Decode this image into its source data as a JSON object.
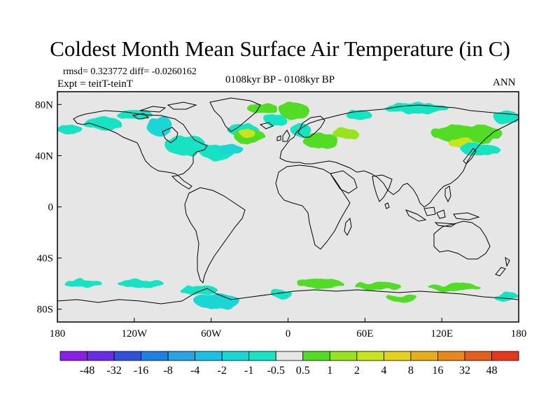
{
  "title": "Coldest Month Mean Surface Air Temperature (in C)",
  "stats": "rmsd= 0.323772 diff= -0.0260162",
  "expt": "Expt = teitT-teinT",
  "period": "0108kyr BP - 0108kyr BP",
  "season": "ANN",
  "map": {
    "lon_range": [
      -180,
      180
    ],
    "lat_range": [
      -90,
      90
    ],
    "lat_ticks": [
      "80N",
      "40N",
      "0",
      "40S",
      "80S"
    ],
    "lon_ticks": [
      "180",
      "120W",
      "60W",
      "0",
      "60E",
      "120E",
      "180"
    ],
    "background": "#e6e6e6",
    "anomalies": [
      {
        "lon": -170,
        "lat": 60,
        "rx": 10,
        "ry": 4,
        "level": "-1"
      },
      {
        "lon": -145,
        "lat": 65,
        "rx": 15,
        "ry": 5,
        "level": "-1"
      },
      {
        "lon": -120,
        "lat": 72,
        "rx": 14,
        "ry": 4,
        "level": "-1"
      },
      {
        "lon": -100,
        "lat": 63,
        "rx": 10,
        "ry": 8,
        "level": "-2"
      },
      {
        "lon": -80,
        "lat": 48,
        "rx": 16,
        "ry": 8,
        "level": "-1"
      },
      {
        "lon": -55,
        "lat": 43,
        "rx": 14,
        "ry": 6,
        "level": "-1"
      },
      {
        "lon": -45,
        "lat": 45,
        "rx": 10,
        "ry": 4,
        "level": "-2"
      },
      {
        "lon": -35,
        "lat": 60,
        "rx": 12,
        "ry": 5,
        "level": "-1"
      },
      {
        "lon": -10,
        "lat": 68,
        "rx": 8,
        "ry": 5,
        "level": "-1"
      },
      {
        "lon": -20,
        "lat": 77,
        "rx": 12,
        "ry": 4,
        "level": "0.5"
      },
      {
        "lon": -30,
        "lat": 55,
        "rx": 12,
        "ry": 6,
        "level": "0.5"
      },
      {
        "lon": -32,
        "lat": 58,
        "rx": 6,
        "ry": 3,
        "level": "2"
      },
      {
        "lon": 5,
        "lat": 75,
        "rx": 12,
        "ry": 6,
        "level": "0.5"
      },
      {
        "lon": 10,
        "lat": 60,
        "rx": 8,
        "ry": 5,
        "level": "-1"
      },
      {
        "lon": 25,
        "lat": 52,
        "rx": 14,
        "ry": 6,
        "level": "0.5"
      },
      {
        "lon": 45,
        "lat": 57,
        "rx": 10,
        "ry": 4,
        "level": "1"
      },
      {
        "lon": 55,
        "lat": 72,
        "rx": 10,
        "ry": 4,
        "level": "-1"
      },
      {
        "lon": 100,
        "lat": 77,
        "rx": 25,
        "ry": 4,
        "level": "-1"
      },
      {
        "lon": 140,
        "lat": 57,
        "rx": 28,
        "ry": 7,
        "level": "0.5"
      },
      {
        "lon": 135,
        "lat": 50,
        "rx": 10,
        "ry": 4,
        "level": "2"
      },
      {
        "lon": 150,
        "lat": 45,
        "rx": 15,
        "ry": 5,
        "level": "-1"
      },
      {
        "lon": 170,
        "lat": 70,
        "rx": 10,
        "ry": 5,
        "level": "-1"
      },
      {
        "lon": -160,
        "lat": -60,
        "rx": 15,
        "ry": 3,
        "level": "-1"
      },
      {
        "lon": -115,
        "lat": -60,
        "rx": 18,
        "ry": 3,
        "level": "-1"
      },
      {
        "lon": -70,
        "lat": -65,
        "rx": 15,
        "ry": 4,
        "level": "-1"
      },
      {
        "lon": -55,
        "lat": -74,
        "rx": 18,
        "ry": 6,
        "level": "-2"
      },
      {
        "lon": -5,
        "lat": -68,
        "rx": 8,
        "ry": 3,
        "level": "-1"
      },
      {
        "lon": 25,
        "lat": -60,
        "rx": 18,
        "ry": 4,
        "level": "0.5"
      },
      {
        "lon": 70,
        "lat": -62,
        "rx": 18,
        "ry": 3,
        "level": "0.5"
      },
      {
        "lon": 90,
        "lat": -72,
        "rx": 12,
        "ry": 3,
        "level": "0.5"
      },
      {
        "lon": 130,
        "lat": -63,
        "rx": 20,
        "ry": 3,
        "level": "0.5"
      },
      {
        "lon": 170,
        "lat": -70,
        "rx": 10,
        "ry": 3,
        "level": "-1"
      }
    ]
  },
  "colorbar": {
    "colors": [
      "#8b1ee8",
      "#6a2ae6",
      "#2f51dc",
      "#207fe3",
      "#29a3e6",
      "#19c1e4",
      "#1ad5d5",
      "#18e3c3",
      "#e6e6e6",
      "#52dc26",
      "#98e31f",
      "#c8e41c",
      "#e6d21c",
      "#e6ae1c",
      "#e6881c",
      "#e65e1c",
      "#e6361c"
    ],
    "labels": [
      "-48",
      "-32",
      "-16",
      "-8",
      "-4",
      "-2",
      "-1",
      "-0.5",
      "0.5",
      "1",
      "2",
      "4",
      "8",
      "16",
      "32",
      "48"
    ]
  },
  "levels": {
    "-2": "#1ad5d5",
    "-1": "#18e3c3",
    "0.5": "#52dc26",
    "1": "#98e31f",
    "2": "#c8e41c"
  }
}
